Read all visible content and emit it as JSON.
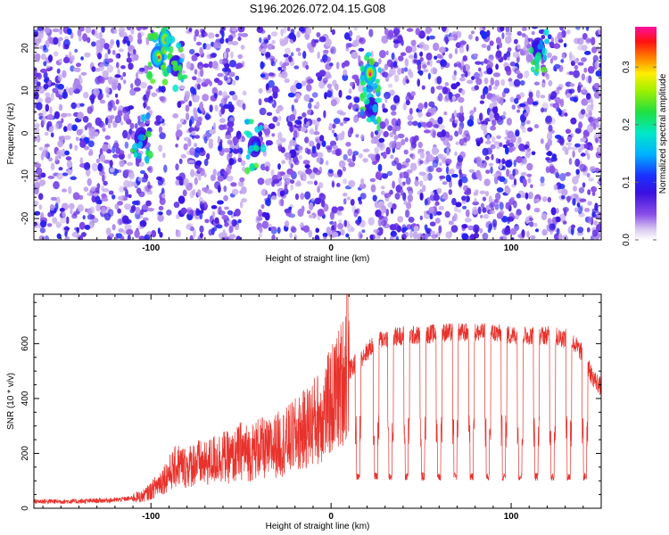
{
  "title": "S196.2026.072.04.15.G08",
  "chart_data": [
    {
      "type": "heatmap",
      "xlabel": "Height of straight line (km)",
      "ylabel": "Frequency (Hz)",
      "xlim": [
        -165,
        150
      ],
      "ylim": [
        -25,
        25
      ],
      "x_ticks": [
        -100,
        0,
        100
      ],
      "y_ticks": [
        -20,
        -10,
        0,
        10,
        20
      ],
      "x_tick_labels": [
        "-100",
        "0",
        "100"
      ],
      "y_tick_labels": [
        "-20",
        "-10",
        "0",
        "10",
        "20"
      ],
      "colorbar": {
        "label": "Normalized spectral amplitude",
        "range": [
          0,
          0.37
        ],
        "ticks": [
          "0.0",
          "0.1",
          "0.2",
          "0.3"
        ],
        "tick_values": [
          0,
          0.1,
          0.2,
          0.3
        ]
      },
      "gaps_x": [
        [
          -100,
          -96
        ],
        [
          -92,
          -86
        ],
        [
          -48,
          -40
        ],
        [
          18,
          22
        ],
        [
          115,
          117
        ]
      ],
      "hot_spots": [
        {
          "x": -92,
          "y": 22,
          "amplitude": 0.36
        },
        {
          "x": -96,
          "y": 18,
          "amplitude": 0.34
        },
        {
          "x": -86,
          "y": 16,
          "amplitude": 0.18
        },
        {
          "x": -105,
          "y": -1,
          "amplitude": 0.16
        },
        {
          "x": -42,
          "y": -3,
          "amplitude": 0.16
        },
        {
          "x": 22,
          "y": 14,
          "amplitude": 0.37
        },
        {
          "x": 22,
          "y": 6,
          "amplitude": 0.12
        },
        {
          "x": 115,
          "y": 20,
          "amplitude": 0.12
        }
      ]
    },
    {
      "type": "line",
      "xlabel": "Height of straight line (km)",
      "ylabel": "SNR (10 * v/v)",
      "xlim": [
        -165,
        150
      ],
      "ylim": [
        0,
        780
      ],
      "x_ticks": [
        -100,
        0,
        100
      ],
      "y_ticks": [
        0,
        200,
        400,
        600
      ],
      "x_tick_labels": [
        "-100",
        "0",
        "100"
      ],
      "y_tick_labels": [
        "0",
        "200",
        "400",
        "600"
      ],
      "color": "#e8322c",
      "series": [
        {
          "x": [
            -165,
            -140,
            -120,
            -105,
            -100,
            -95,
            -90,
            -85,
            -80,
            -75,
            -70,
            -65,
            -60,
            -55,
            -50,
            -45,
            -40,
            -35,
            -30,
            -25,
            -20,
            -15,
            -10,
            -5,
            0,
            5,
            10,
            15,
            20,
            25,
            30,
            40,
            50,
            60,
            70,
            80,
            90,
            100,
            110,
            120,
            130,
            135,
            140,
            145,
            150
          ],
          "y": [
            25,
            25,
            30,
            40,
            60,
            90,
            120,
            150,
            140,
            160,
            150,
            170,
            180,
            170,
            200,
            190,
            210,
            200,
            220,
            230,
            250,
            270,
            300,
            320,
            370,
            420,
            500,
            540,
            570,
            610,
            620,
            630,
            630,
            640,
            640,
            640,
            640,
            630,
            630,
            630,
            620,
            600,
            560,
            480,
            440
          ]
        }
      ],
      "spike": {
        "x": 9,
        "y": 780
      },
      "dropouts_x": [
        15,
        25,
        33,
        42,
        51,
        60,
        69,
        78,
        87,
        96,
        105,
        114,
        123,
        132,
        141
      ],
      "dropout_floor": 100
    }
  ]
}
